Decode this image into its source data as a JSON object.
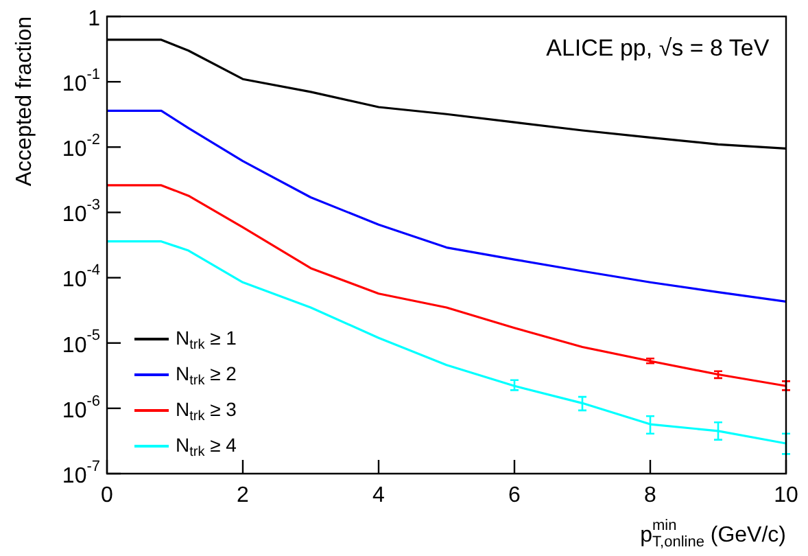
{
  "chart_data": {
    "type": "line",
    "xlabel": "p$^{min}$$_{T,online}$ (GeV/c)",
    "ylabel": "Accepted fraction",
    "annotations": [
      "ALICE pp, √s = 8 TeV"
    ],
    "x": [
      0,
      0.8,
      1.2,
      2,
      3,
      4,
      5,
      6,
      7,
      8,
      9,
      10
    ],
    "series": [
      {
        "name": "N$_{trk}$ ≥ 1",
        "color": "#000000",
        "values": [
          0.44,
          0.44,
          0.3,
          0.11,
          0.07,
          0.041,
          0.032,
          0.024,
          0.018,
          0.014,
          0.011,
          0.0095
        ]
      },
      {
        "name": "N$_{trk}$ ≥ 2",
        "color": "#0000ff",
        "values": [
          0.036,
          0.036,
          0.0195,
          0.0061,
          0.0017,
          0.00065,
          0.00029,
          0.00019,
          0.000126,
          8.5e-05,
          6e-05,
          4.3e-05
        ]
      },
      {
        "name": "N$_{trk}$ ≥ 3",
        "color": "#ff0000",
        "values": [
          0.0026,
          0.0026,
          0.0018,
          0.00059,
          0.00014,
          5.7e-05,
          3.5e-05,
          1.7e-05,
          8.7e-06,
          5.3e-06,
          3.3e-06,
          2.2e-06
        ],
        "errors": [
          null,
          null,
          null,
          null,
          null,
          null,
          null,
          null,
          null,
          [
            4.9e-06,
            5.8e-06
          ],
          [
            2.9e-06,
            3.7e-06
          ],
          [
            1.9e-06,
            2.6e-06
          ]
        ]
      },
      {
        "name": "N$_{trk}$ ≥ 4",
        "color": "#00ffff",
        "values": [
          0.00036,
          0.00036,
          0.00026,
          8.5e-05,
          3.5e-05,
          1.2e-05,
          4.6e-06,
          2.2e-06,
          1.2e-06,
          5.7e-07,
          4.5e-07,
          2.9e-07
        ],
        "errors": [
          null,
          null,
          null,
          null,
          null,
          null,
          null,
          [
            1.9e-06,
            2.7e-06
          ],
          [
            9.3e-07,
            1.5e-06
          ],
          [
            4.1e-07,
            7.6e-07
          ],
          [
            3.3e-07,
            6.1e-07
          ],
          [
            2e-07,
            4.1e-07
          ]
        ]
      }
    ],
    "log": "y",
    "xlim": [
      0,
      10
    ],
    "xticks": [
      0,
      2,
      4,
      6,
      8,
      10
    ],
    "ylim": [
      1e-07,
      1
    ],
    "yticks": [
      {
        "value": 1e-07,
        "label": "10$^{-7}$"
      },
      {
        "value": 1e-06,
        "label": "10$^{-6}$"
      },
      {
        "value": 1e-05,
        "label": "10$^{-5}$"
      },
      {
        "value": 0.0001,
        "label": "10$^{-4}$"
      },
      {
        "value": 0.001,
        "label": "10$^{-3}$"
      },
      {
        "value": 0.01,
        "label": "10$^{-2}$"
      },
      {
        "value": 0.1,
        "label": "10$^{-1}$"
      },
      {
        "value": 1,
        "label": "1"
      }
    ],
    "grid": false,
    "legend": "bottom left",
    "marker": "none",
    "line_style": "solid"
  }
}
